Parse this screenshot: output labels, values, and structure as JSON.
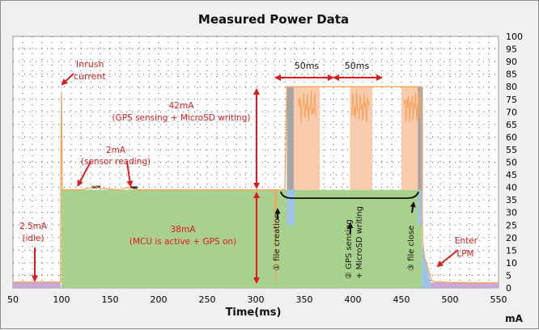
{
  "chart_data": {
    "type": "area",
    "title": "Measured Power Data",
    "xlabel": "Time(ms)",
    "y_unit": "mA",
    "xlim": [
      50,
      550
    ],
    "ylim": [
      0,
      100
    ],
    "x_ticks": [
      50,
      100,
      150,
      200,
      250,
      300,
      350,
      400,
      450,
      500,
      550
    ],
    "y_ticks": [
      0,
      5,
      10,
      15,
      20,
      25,
      30,
      35,
      40,
      45,
      50,
      55,
      60,
      65,
      70,
      75,
      80,
      85,
      90,
      95,
      100
    ],
    "y_axis_side": "right",
    "grid": true,
    "series": [
      {
        "color": "#f7a35c",
        "points": [
          [
            50,
            2.3
          ],
          [
            99,
            2.3
          ],
          [
            99.5,
            60
          ],
          [
            100,
            78
          ],
          [
            100.8,
            40
          ],
          [
            101.5,
            39
          ],
          [
            120,
            39
          ],
          [
            128,
            39.6
          ],
          [
            134,
            40.4
          ],
          [
            140,
            39.6
          ],
          [
            160,
            39
          ],
          [
            168,
            40
          ],
          [
            174,
            39.3
          ],
          [
            180,
            39
          ],
          [
            320,
            39
          ],
          [
            320.5,
            2
          ],
          [
            321,
            39
          ],
          [
            330,
            39
          ],
          [
            332,
            80
          ],
          [
            470,
            80
          ],
          [
            471,
            39
          ],
          [
            472,
            18
          ],
          [
            474,
            12
          ],
          [
            478,
            7
          ],
          [
            481,
            3
          ],
          [
            484,
            2.5
          ],
          [
            500,
            2.2
          ],
          [
            550,
            2
          ]
        ]
      }
    ],
    "annotations": [
      {
        "label": "Inrush current",
        "x": 100,
        "y": 78
      },
      {
        "label": "2mA (sensor reading)",
        "x": 140,
        "y": 40
      },
      {
        "label": "42mA (GPS sensing + MicroSD writing)",
        "x": 300,
        "y": 60
      },
      {
        "label": "38mA (MCU is active + GPS on)",
        "x": 300,
        "y": 20
      },
      {
        "label": "2.5mA (idle)",
        "x": 75,
        "y": 3
      },
      {
        "label": "50ms",
        "x": 355,
        "y": 84
      },
      {
        "label": "50ms",
        "x": 405,
        "y": 84
      },
      {
        "label": "① file creation",
        "x": 322,
        "y": 26
      },
      {
        "label": "② GPS sensing + MicroSD writing",
        "x": 415,
        "y": 26
      },
      {
        "label": "③ file close",
        "x": 465,
        "y": 30
      },
      {
        "label": "Enter LPM",
        "x": 485,
        "y": 11
      }
    ]
  },
  "texts": {
    "inrush": [
      "Inrush",
      "current"
    ],
    "sensor": [
      "2mA",
      "(sensor reading)"
    ],
    "gps42": [
      "42mA",
      "(GPS sensing + MicroSD writing)"
    ],
    "mcu38": [
      "38mA",
      "(MCU is active + GPS on)"
    ],
    "idle": [
      "2.5mA",
      "(idle)"
    ],
    "ms1": "50ms",
    "ms2": "50ms",
    "v1": "① file creation",
    "v2a": "② GPS sensing",
    "v2b": "+ MicroSD writing",
    "v3": "③ file close",
    "lpm": [
      "Enter",
      "LPM"
    ]
  },
  "colors": {
    "green": "#a9d18e",
    "peach": "#f8cbad",
    "grey": "#a5a5a5",
    "blue": "#9dc3e6",
    "pink": "#c9a7d4",
    "orange_trace": "#f7a35c",
    "annotation_red": "#e01b1b",
    "plot_bg": "#ffffff",
    "frame_bg": "#f0f0f0"
  }
}
